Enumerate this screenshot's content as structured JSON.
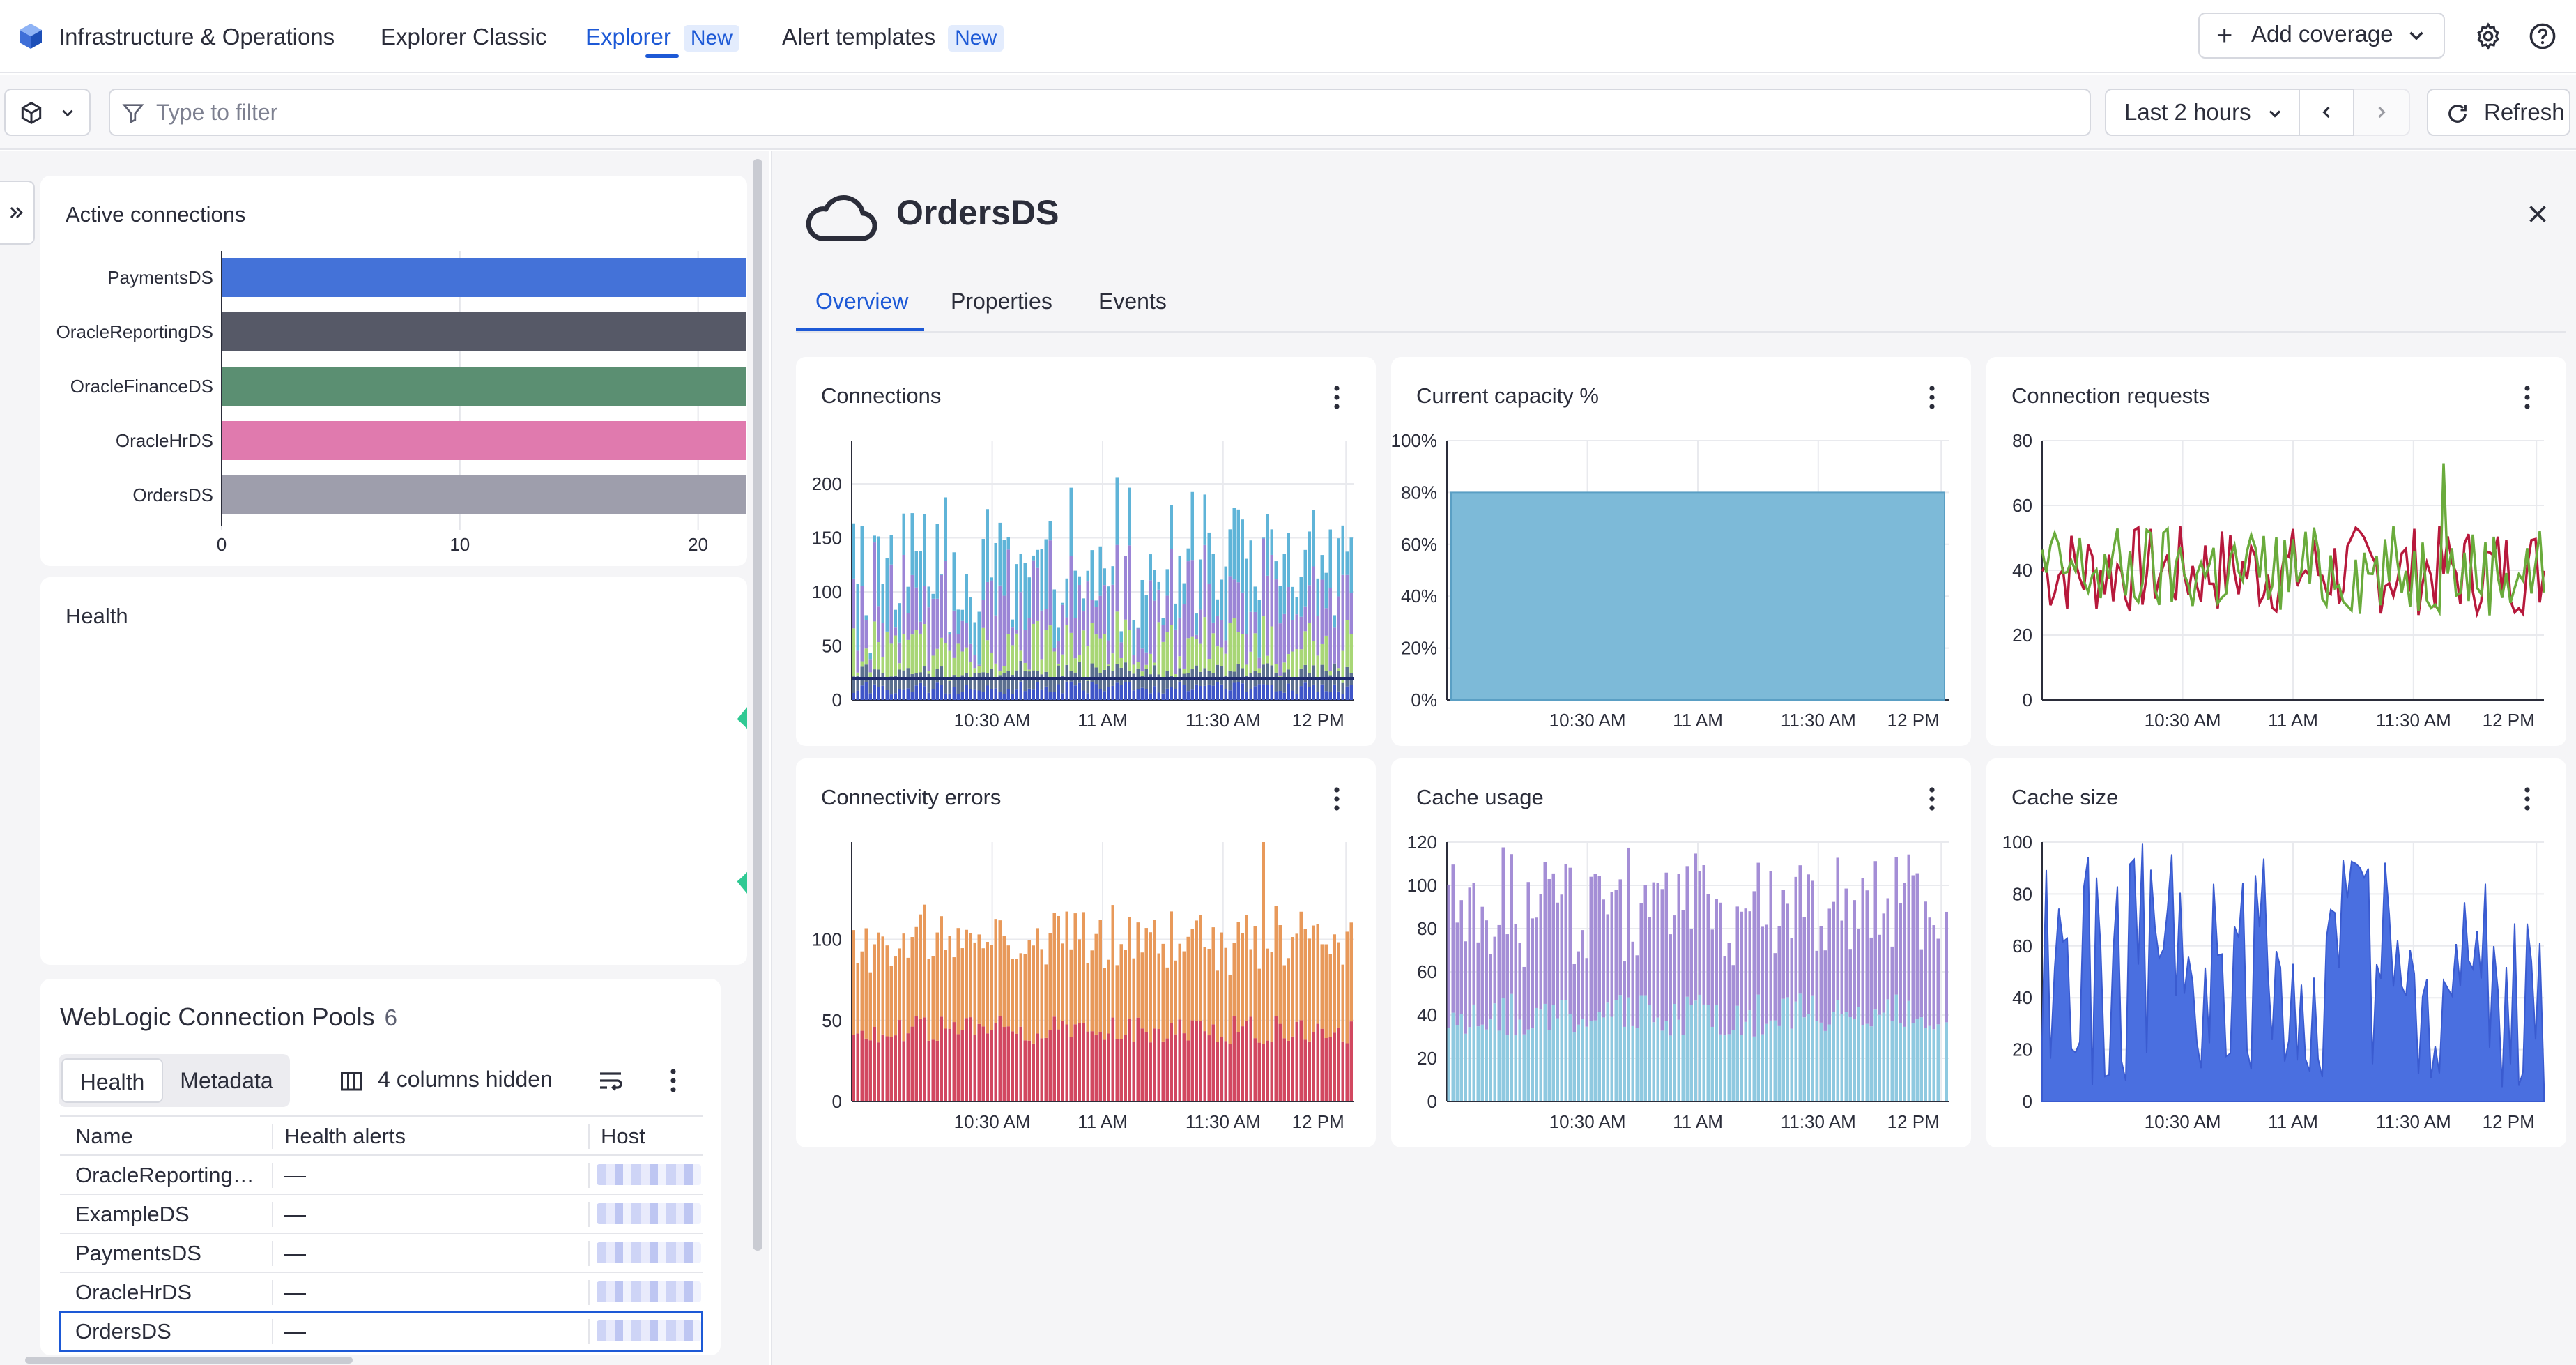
{
  "topbar": {
    "app_title": "Infrastructure & Operations",
    "tabs": [
      {
        "label": "Explorer Classic",
        "badge": ""
      },
      {
        "label": "Explorer",
        "badge": "New"
      },
      {
        "label": "Alert templates",
        "badge": "New"
      }
    ],
    "add_coverage_label": "Add coverage"
  },
  "filterbar": {
    "placeholder": "Type to filter",
    "timeframe": "Last 2 hours",
    "refresh_label": "Refresh"
  },
  "left": {
    "active_connections": {
      "title": "Active connections",
      "chart_data": {
        "type": "bar",
        "orientation": "horizontal",
        "categories": [
          "PaymentsDS",
          "OracleReportingDS",
          "OracleFinanceDS",
          "OracleHrDS",
          "OrdersDS"
        ],
        "values": [
          22,
          22,
          22,
          22,
          22
        ],
        "xlim": [
          0,
          22
        ],
        "ticks": [
          "0",
          "10",
          "20"
        ],
        "colors": [
          "#4472d8",
          "#565967",
          "#5b8f72",
          "#e07aae",
          "#9e9eac"
        ]
      }
    },
    "health": {
      "title": "Health",
      "donut_color": "#2fc993"
    },
    "table": {
      "title": "WebLogic Connection Pools",
      "count": "6",
      "segments": [
        "Health",
        "Metadata"
      ],
      "columns_hidden": "4 columns hidden",
      "headers": [
        "Name",
        "Health alerts",
        "Host"
      ],
      "rows": [
        {
          "name": "OracleReporting…",
          "alerts": "—"
        },
        {
          "name": "ExampleDS",
          "alerts": "—"
        },
        {
          "name": "PaymentsDS",
          "alerts": "—"
        },
        {
          "name": "OracleHrDS",
          "alerts": "—"
        },
        {
          "name": "OrdersDS",
          "alerts": "—"
        }
      ]
    }
  },
  "detail": {
    "title": "OrdersDS",
    "tabs": [
      "Overview",
      "Properties",
      "Events"
    ],
    "x_ticks": [
      "10:30 AM",
      "11 AM",
      "11:30 AM",
      "12 PM"
    ]
  },
  "chart_data": [
    {
      "id": "connections",
      "type": "bar",
      "title": "Connections",
      "stacked": true,
      "ylim": [
        0,
        240
      ],
      "yticks": [
        0,
        50,
        100,
        150,
        200
      ],
      "series": [
        {
          "color": "#5fb4d8"
        },
        {
          "color": "#9b85d6"
        },
        {
          "color": "#a8d676"
        },
        {
          "color": "#5b6f8f"
        },
        {
          "color": "#3f55c8"
        }
      ],
      "baseline_value": 20
    },
    {
      "id": "capacity",
      "type": "area",
      "title": "Current capacity %",
      "ylim": [
        0,
        100
      ],
      "yticks": [
        "0%",
        "20%",
        "40%",
        "60%",
        "80%",
        "100%"
      ],
      "value": 80,
      "color": "#7dbad8"
    },
    {
      "id": "requests",
      "type": "line",
      "title": "Connection requests",
      "ylim": [
        0,
        80
      ],
      "yticks": [
        0,
        20,
        40,
        60,
        80
      ],
      "series": [
        {
          "color": "#b7193c"
        },
        {
          "color": "#6aab3c"
        }
      ],
      "typical": 40,
      "peak": 73
    },
    {
      "id": "errors",
      "type": "bar",
      "title": "Connectivity errors",
      "stacked": true,
      "ylim": [
        0,
        160
      ],
      "yticks": [
        0,
        50,
        100
      ],
      "series": [
        {
          "color": "#d24860"
        },
        {
          "color": "#e8995a"
        }
      ],
      "peak": 160
    },
    {
      "id": "cache_usage",
      "type": "bar",
      "title": "Cache usage",
      "stacked": true,
      "ylim": [
        0,
        120
      ],
      "yticks": [
        0,
        20,
        40,
        60,
        80,
        100,
        120
      ],
      "series": [
        {
          "color": "#8fc9e0"
        },
        {
          "color": "#a48ed6"
        }
      ]
    },
    {
      "id": "cache_size",
      "type": "area",
      "title": "Cache size",
      "ylim": [
        0,
        100
      ],
      "yticks": [
        0,
        20,
        40,
        60,
        80,
        100
      ],
      "color": "#4a6fe0"
    }
  ]
}
